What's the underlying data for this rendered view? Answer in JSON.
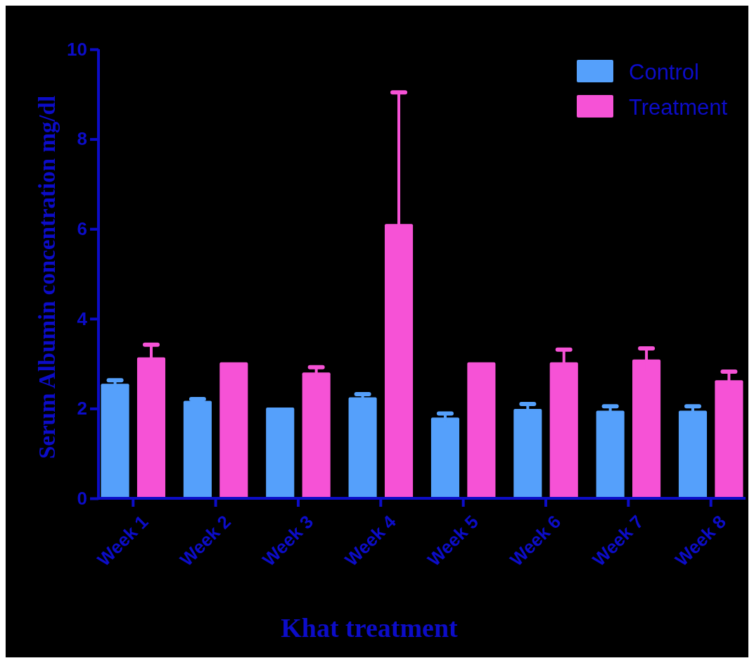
{
  "chart_data": {
    "type": "bar",
    "xlabel": "Khat treatment",
    "ylabel": "Serum Albumin concentration mg/dl",
    "categories": [
      "Week 1",
      "Week 2",
      "Week 3",
      "Week 4",
      "Week 5",
      "Week 6",
      "Week 7",
      "Week 8"
    ],
    "series": [
      {
        "name": "Control",
        "color": "#55a0fb",
        "values": [
          2.55,
          2.17,
          2.02,
          2.25,
          1.8,
          1.99,
          1.95,
          1.95
        ],
        "errors": [
          0.08,
          0.04,
          null,
          0.07,
          0.09,
          0.11,
          0.1,
          0.1
        ]
      },
      {
        "name": "Treatment",
        "color": "#f652d6",
        "values": [
          3.14,
          3.03,
          2.8,
          6.11,
          3.03,
          3.03,
          3.09,
          2.63
        ],
        "errors": [
          0.28,
          null,
          0.12,
          2.93,
          null,
          0.28,
          0.25,
          0.19
        ]
      }
    ],
    "ylim": [
      0,
      10
    ],
    "yticks": [
      0,
      2,
      4,
      6,
      8,
      10
    ],
    "grid": false,
    "legend": "top right"
  }
}
